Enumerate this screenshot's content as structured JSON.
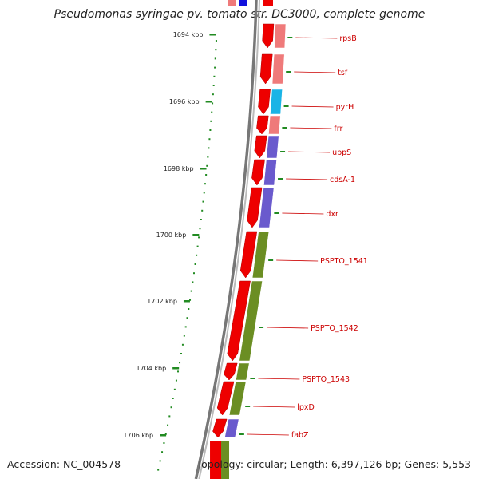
{
  "title": "Pseudomonas syringae pv. tomato str. DC3000, complete genome",
  "accession": "Accession: NC_004578",
  "summary": "Topology: circular; Length: 6,397,126 bp; Genes: 5,553",
  "colors": {
    "backbone": "#777777",
    "gene_arrow": "#ee0000",
    "tick": "#228b22",
    "label": "#cc0000",
    "cog_pink": "#ef7a7a",
    "cog_cyan": "#1ab4e6",
    "cog_purple": "#6a5acd",
    "cog_olive": "#6b8e23",
    "cog_blue": "#1010dd"
  },
  "kbp_ticks": [
    {
      "label": "1694 kbp"
    },
    {
      "label": "1696 kbp"
    },
    {
      "label": "1698 kbp"
    },
    {
      "label": "1700 kbp"
    },
    {
      "label": "1702 kbp"
    },
    {
      "label": "1704 kbp"
    },
    {
      "label": "1706 kbp"
    }
  ],
  "genes": [
    {
      "name": "rpsB",
      "cog": "cog_pink"
    },
    {
      "name": "tsf",
      "cog": "cog_pink"
    },
    {
      "name": "pyrH",
      "cog": "cog_cyan"
    },
    {
      "name": "frr",
      "cog": "cog_pink"
    },
    {
      "name": "uppS",
      "cog": "cog_purple"
    },
    {
      "name": "cdsA-1",
      "cog": "cog_purple"
    },
    {
      "name": "dxr",
      "cog": "cog_purple"
    },
    {
      "name": "PSPTO_1541",
      "cog": "cog_olive"
    },
    {
      "name": "PSPTO_1542",
      "cog": "cog_olive"
    },
    {
      "name": "PSPTO_1543",
      "cog": "cog_olive"
    },
    {
      "name": "lpxD",
      "cog": "cog_olive"
    },
    {
      "name": "fabZ",
      "cog": "cog_purple"
    }
  ]
}
